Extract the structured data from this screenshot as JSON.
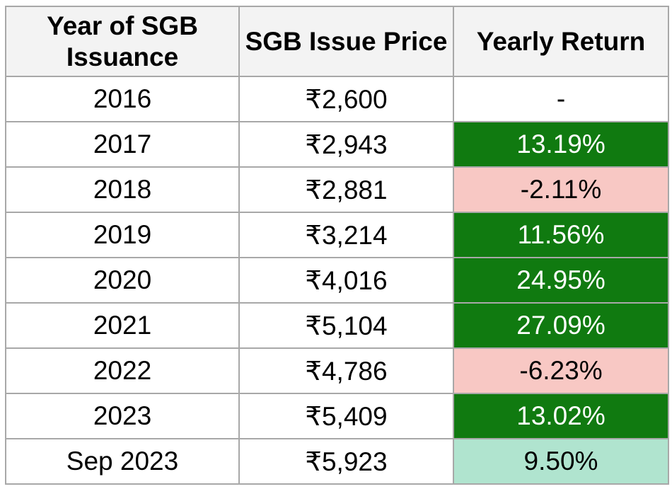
{
  "table": {
    "headers": [
      "Year of SGB Issuance",
      "SGB Issue Price",
      "Yearly Return"
    ],
    "rows": [
      {
        "year": "2016",
        "price": "₹2,600",
        "return": "-",
        "status": "none"
      },
      {
        "year": "2017",
        "price": "₹2,943",
        "return": "13.19%",
        "status": "pos"
      },
      {
        "year": "2018",
        "price": "₹2,881",
        "return": "-2.11%",
        "status": "neg"
      },
      {
        "year": "2019",
        "price": "₹3,214",
        "return": "11.56%",
        "status": "pos"
      },
      {
        "year": "2020",
        "price": "₹4,016",
        "return": "24.95%",
        "status": "pos"
      },
      {
        "year": "2021",
        "price": "₹5,104",
        "return": "27.09%",
        "status": "pos"
      },
      {
        "year": "2022",
        "price": "₹4,786",
        "return": "-6.23%",
        "status": "neg"
      },
      {
        "year": "2023",
        "price": "₹5,409",
        "return": "13.02%",
        "status": "pos"
      },
      {
        "year": "Sep 2023",
        "price": "₹5,923",
        "return": "9.50%",
        "status": "ytd"
      }
    ]
  },
  "colors": {
    "positive_return": "#107a10",
    "negative_return": "#f8c8c4",
    "partial_year_return": "#b0e4cf",
    "header_background": "#f3f3f3",
    "grid_border": "#a8a8a8"
  }
}
